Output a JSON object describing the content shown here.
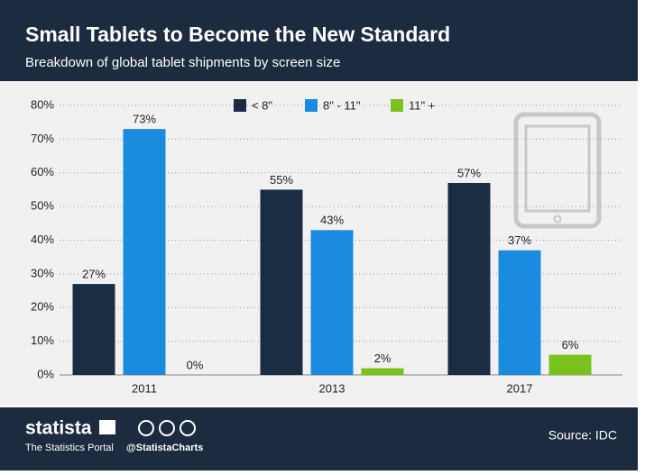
{
  "chart_data": {
    "type": "bar",
    "title": "Small Tablets to Become the New Standard",
    "subtitle": "Breakdown of global tablet shipments by screen size",
    "categories": [
      "2011",
      "2013",
      "2017"
    ],
    "series": [
      {
        "name": "< 8\"",
        "color": "#1b2d42",
        "values": [
          27,
          55,
          57
        ],
        "value_labels": [
          "27%",
          "55%",
          "57%"
        ]
      },
      {
        "name": "8\" - 11\"",
        "color": "#1b8be0",
        "values": [
          73,
          43,
          37
        ],
        "value_labels": [
          "73%",
          "43%",
          "37%"
        ]
      },
      {
        "name": "11\" +",
        "color": "#7cc21f",
        "values": [
          0,
          2,
          6
        ],
        "value_labels": [
          "0%",
          "2%",
          "6%"
        ]
      }
    ],
    "ylim": [
      0,
      80
    ],
    "yticks": [
      {
        "value": 0,
        "label": "0%"
      },
      {
        "value": 10,
        "label": "10%"
      },
      {
        "value": 20,
        "label": "20%"
      },
      {
        "value": 30,
        "label": "30%"
      },
      {
        "value": 40,
        "label": "40%"
      },
      {
        "value": 50,
        "label": "50%"
      },
      {
        "value": 60,
        "label": "60%"
      },
      {
        "value": 70,
        "label": "70%"
      },
      {
        "value": 80,
        "label": "80%"
      }
    ],
    "grid": true,
    "legend": "top",
    "brand": "statista",
    "brand_tagline": "The Statistics Portal",
    "handle": "@StatistaCharts",
    "source": "Source: IDC"
  }
}
